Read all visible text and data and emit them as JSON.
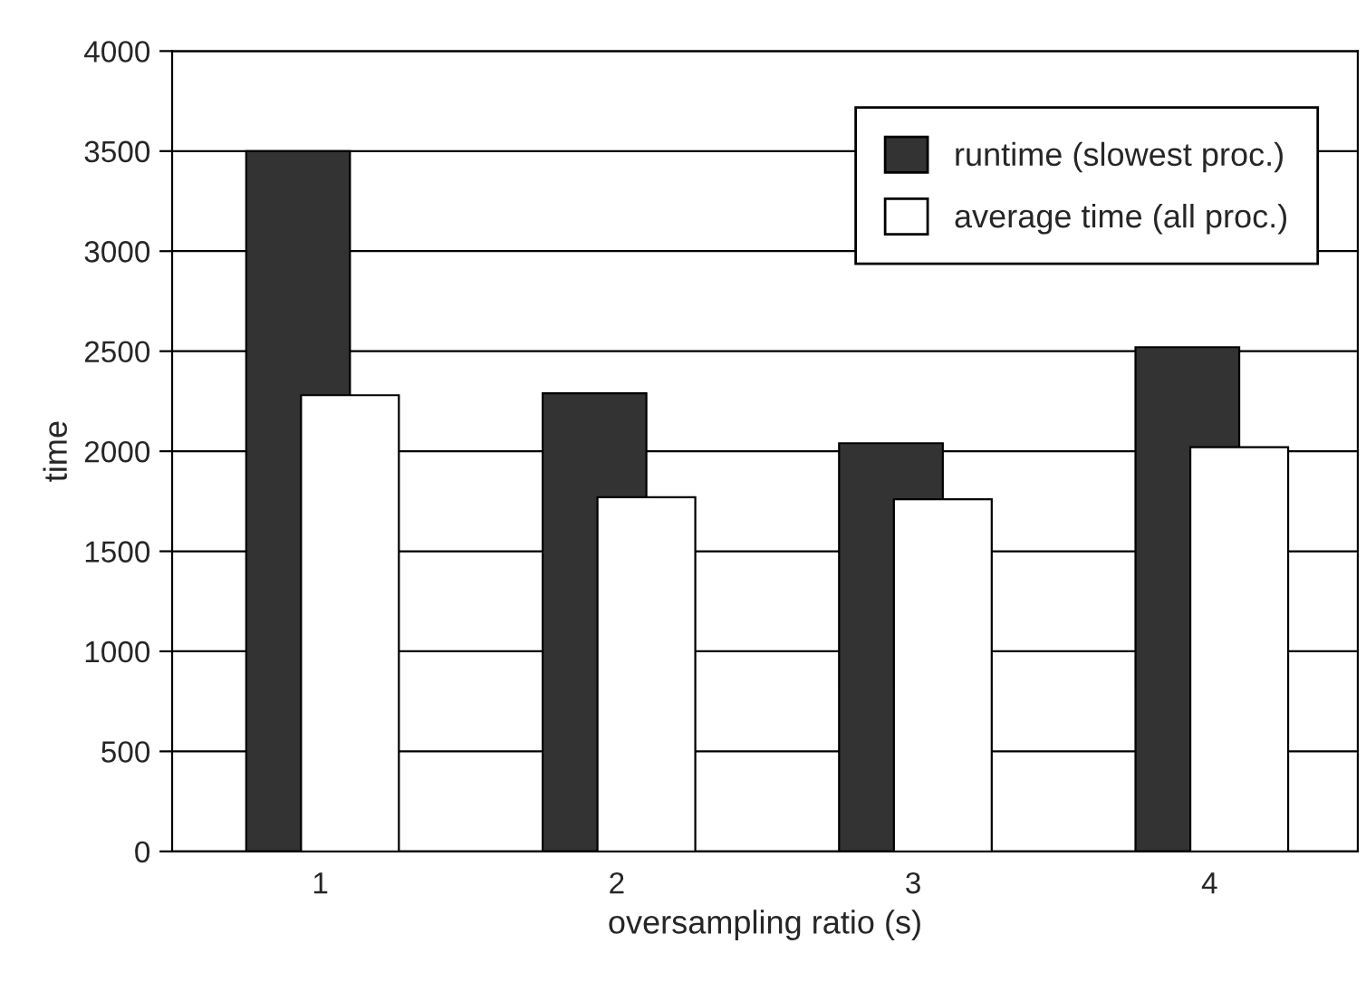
{
  "chart_data": {
    "type": "bar",
    "xlabel": "oversampling ratio (s)",
    "ylabel": "time",
    "categories": [
      "1",
      "2",
      "3",
      "4"
    ],
    "series": [
      {
        "name": "runtime (slowest proc.)",
        "color": "#333333",
        "values": [
          3500,
          2290,
          2040,
          2520
        ]
      },
      {
        "name": "average time (all proc.)",
        "color": "#ffffff",
        "values": [
          2280,
          1770,
          1760,
          2020
        ]
      }
    ],
    "ylim": [
      0,
      4000
    ],
    "yticks": [
      0,
      500,
      1000,
      1500,
      2000,
      2500,
      3000,
      3500,
      4000
    ],
    "grid": "y",
    "legend": "top right"
  }
}
